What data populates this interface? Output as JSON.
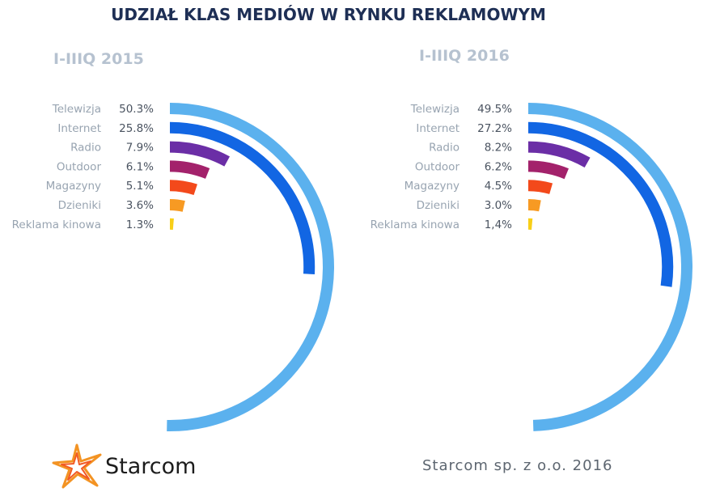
{
  "title": "UDZIAŁ KLAS MEDIÓW W RYNKU REKLAMOWYM",
  "brand": "Starcom",
  "credit": "Starcom sp. z o.o. 2016",
  "chart_data": [
    {
      "type": "radial-bar",
      "title": "I-IIIQ 2015",
      "categories": [
        "Telewizja",
        "Internet",
        "Radio",
        "Outdoor",
        "Magazyny",
        "Dzieniki",
        "Reklama kinowa"
      ],
      "values": [
        50.3,
        25.8,
        7.9,
        6.1,
        5.1,
        3.6,
        1.3
      ],
      "value_labels": [
        "50.3%",
        "25.8%",
        "7.9%",
        "6.1%",
        "5.1%",
        "3.6%",
        "1.3%"
      ],
      "colors": [
        "#5bb1ee",
        "#1266e3",
        "#6b2ea6",
        "#a3226b",
        "#f3491b",
        "#f79a23",
        "#f8cf18"
      ]
    },
    {
      "type": "radial-bar",
      "title": "I-IIIQ 2016",
      "categories": [
        "Telewizja",
        "Internet",
        "Radio",
        "Outdoor",
        "Magazyny",
        "Dzieniki",
        "Reklama kinowa"
      ],
      "values": [
        49.5,
        27.2,
        8.2,
        6.2,
        4.5,
        3.0,
        1.4
      ],
      "value_labels": [
        "49.5%",
        "27.2%",
        "8.2%",
        "6.2%",
        "4.5%",
        "3.0%",
        "1,4%"
      ],
      "colors": [
        "#5bb1ee",
        "#1266e3",
        "#6b2ea6",
        "#a3226b",
        "#f3491b",
        "#f79a23",
        "#f8cf18"
      ]
    }
  ]
}
